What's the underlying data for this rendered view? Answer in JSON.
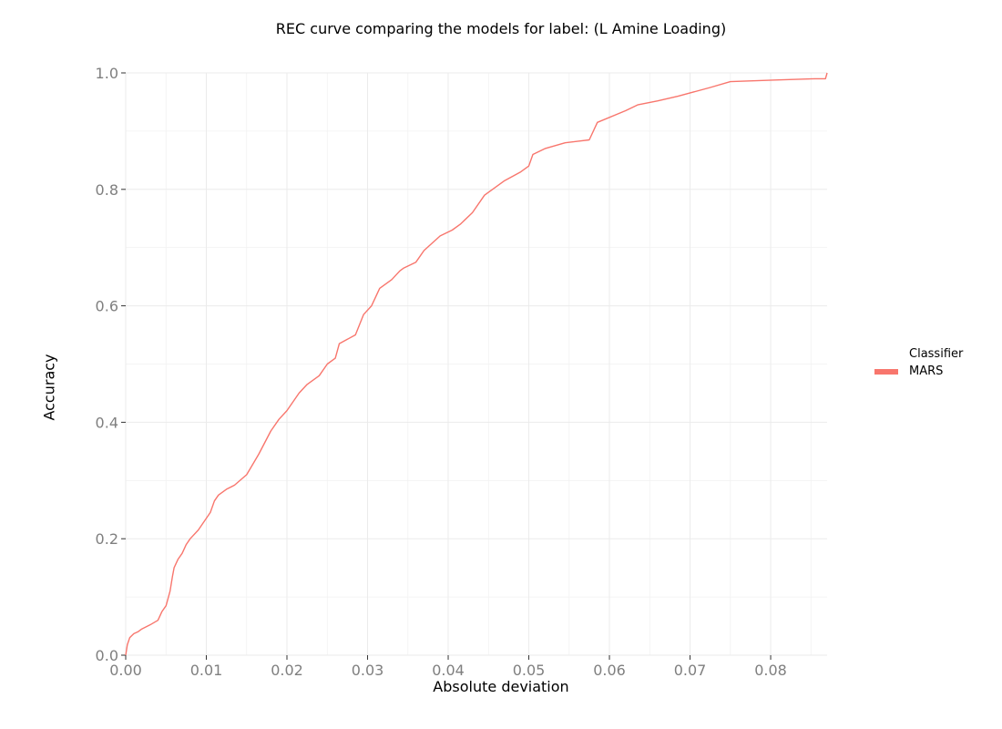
{
  "chart_data": {
    "type": "line",
    "title": "REC curve comparing the models for label: (L Amine Loading)",
    "xlabel": "Absolute deviation",
    "ylabel": "Accuracy",
    "xlim": [
      0,
      0.087
    ],
    "ylim": [
      0,
      1.0
    ],
    "x_ticks": [
      0.0,
      0.01,
      0.02,
      0.03,
      0.04,
      0.05,
      0.06,
      0.07,
      0.08
    ],
    "x_tick_labels": [
      "0.00",
      "0.01",
      "0.02",
      "0.03",
      "0.04",
      "0.05",
      "0.06",
      "0.07",
      "0.08"
    ],
    "y_ticks": [
      0.0,
      0.2,
      0.4,
      0.6,
      0.8,
      1.0
    ],
    "y_tick_labels": [
      "0.0",
      "0.2",
      "0.4",
      "0.6",
      "0.8",
      "1.0"
    ],
    "grid": true,
    "legend_position": "right",
    "legend_title": "Classifier",
    "series": [
      {
        "name": "MARS",
        "color": "#f8766d",
        "x": [
          0,
          0.0002,
          0.0005,
          0.001,
          0.0015,
          0.002,
          0.003,
          0.004,
          0.0045,
          0.005,
          0.0055,
          0.0058,
          0.006,
          0.0065,
          0.007,
          0.0075,
          0.008,
          0.009,
          0.0105,
          0.011,
          0.0115,
          0.0125,
          0.0135,
          0.015,
          0.0165,
          0.018,
          0.019,
          0.02,
          0.0215,
          0.0225,
          0.024,
          0.025,
          0.026,
          0.0265,
          0.0285,
          0.0295,
          0.0305,
          0.0315,
          0.033,
          0.034,
          0.0345,
          0.036,
          0.037,
          0.039,
          0.0405,
          0.0415,
          0.043,
          0.0445,
          0.0455,
          0.047,
          0.049,
          0.05,
          0.0505,
          0.052,
          0.0545,
          0.0575,
          0.0585,
          0.062,
          0.0635,
          0.066,
          0.0685,
          0.0725,
          0.075,
          0.081,
          0.0855,
          0.0868,
          0.087
        ],
        "y": [
          0,
          0.018,
          0.03,
          0.037,
          0.04,
          0.045,
          0.052,
          0.06,
          0.075,
          0.085,
          0.11,
          0.135,
          0.15,
          0.165,
          0.175,
          0.19,
          0.2,
          0.215,
          0.245,
          0.265,
          0.275,
          0.285,
          0.292,
          0.31,
          0.345,
          0.385,
          0.405,
          0.42,
          0.45,
          0.465,
          0.48,
          0.5,
          0.51,
          0.535,
          0.55,
          0.585,
          0.6,
          0.63,
          0.645,
          0.66,
          0.665,
          0.675,
          0.695,
          0.72,
          0.73,
          0.74,
          0.76,
          0.79,
          0.8,
          0.815,
          0.83,
          0.84,
          0.86,
          0.87,
          0.88,
          0.885,
          0.915,
          0.935,
          0.945,
          0.952,
          0.96,
          0.975,
          0.985,
          0.988,
          0.99,
          0.99,
          1.0
        ]
      }
    ]
  }
}
